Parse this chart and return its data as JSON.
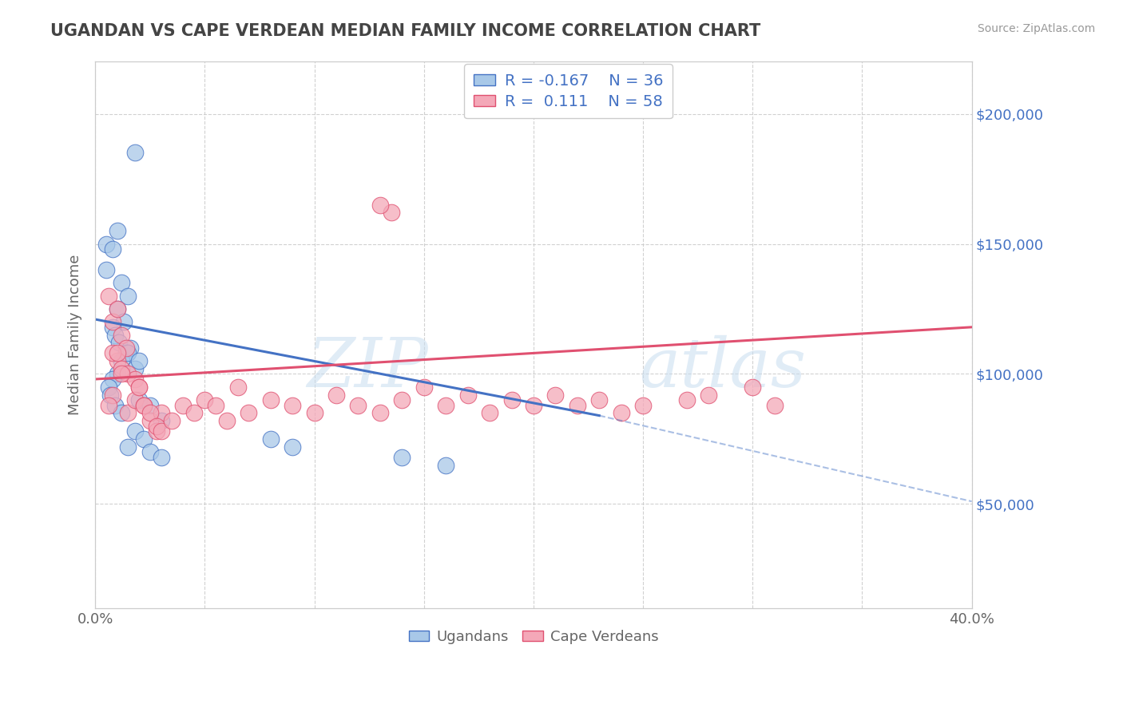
{
  "title": "UGANDAN VS CAPE VERDEAN MEDIAN FAMILY INCOME CORRELATION CHART",
  "source_text": "Source: ZipAtlas.com",
  "ylabel": "Median Family Income",
  "watermark_line1": "ZIP",
  "watermark_line2": "atlas",
  "xlim": [
    0.0,
    0.4
  ],
  "ylim": [
    10000,
    220000
  ],
  "yticks": [
    50000,
    100000,
    150000,
    200000
  ],
  "xticks": [
    0.0,
    0.05,
    0.1,
    0.15,
    0.2,
    0.25,
    0.3,
    0.35,
    0.4
  ],
  "ugandan_color": "#a8c8e8",
  "cape_verdean_color": "#f4a8b8",
  "ugandan_line_color": "#4472c4",
  "cape_verdean_line_color": "#e05070",
  "ugandan_scatter": {
    "x": [
      0.018,
      0.005,
      0.005,
      0.008,
      0.01,
      0.012,
      0.015,
      0.01,
      0.013,
      0.008,
      0.009,
      0.011,
      0.014,
      0.016,
      0.012,
      0.015,
      0.018,
      0.02,
      0.01,
      0.008,
      0.006,
      0.007,
      0.009,
      0.012,
      0.02,
      0.025,
      0.03,
      0.018,
      0.022,
      0.08,
      0.09,
      0.14,
      0.16,
      0.025,
      0.03,
      0.015
    ],
    "y": [
      185000,
      150000,
      140000,
      148000,
      155000,
      135000,
      130000,
      125000,
      120000,
      118000,
      115000,
      112000,
      108000,
      110000,
      105000,
      108000,
      102000,
      105000,
      100000,
      98000,
      95000,
      92000,
      88000,
      85000,
      90000,
      88000,
      82000,
      78000,
      75000,
      75000,
      72000,
      68000,
      65000,
      70000,
      68000,
      72000
    ]
  },
  "cape_verdean_scatter": {
    "x": [
      0.006,
      0.008,
      0.01,
      0.012,
      0.014,
      0.01,
      0.008,
      0.012,
      0.015,
      0.018,
      0.02,
      0.01,
      0.012,
      0.008,
      0.006,
      0.015,
      0.018,
      0.022,
      0.025,
      0.028,
      0.03,
      0.02,
      0.022,
      0.025,
      0.028,
      0.03,
      0.035,
      0.04,
      0.045,
      0.05,
      0.055,
      0.06,
      0.065,
      0.07,
      0.08,
      0.09,
      0.1,
      0.11,
      0.12,
      0.13,
      0.135,
      0.14,
      0.15,
      0.16,
      0.17,
      0.18,
      0.19,
      0.2,
      0.21,
      0.22,
      0.23,
      0.24,
      0.25,
      0.27,
      0.13,
      0.28,
      0.3,
      0.31
    ],
    "y": [
      130000,
      120000,
      125000,
      115000,
      110000,
      105000,
      108000,
      102000,
      100000,
      98000,
      95000,
      108000,
      100000,
      92000,
      88000,
      85000,
      90000,
      88000,
      82000,
      78000,
      85000,
      95000,
      88000,
      85000,
      80000,
      78000,
      82000,
      88000,
      85000,
      90000,
      88000,
      82000,
      95000,
      85000,
      90000,
      88000,
      85000,
      92000,
      88000,
      85000,
      162000,
      90000,
      95000,
      88000,
      92000,
      85000,
      90000,
      88000,
      92000,
      88000,
      90000,
      85000,
      88000,
      90000,
      165000,
      92000,
      95000,
      88000
    ]
  },
  "ugandan_line": {
    "x0": 0.0,
    "y0": 121000,
    "x1": 0.23,
    "y1": 84000
  },
  "ugandan_line_dashed": {
    "x0": 0.23,
    "y0": 84000,
    "x1": 0.4,
    "y1": 51000
  },
  "cape_verdean_line": {
    "x0": 0.0,
    "y0": 98000,
    "x1": 0.4,
    "y1": 118000
  },
  "background_color": "#ffffff",
  "grid_color": "#cccccc",
  "title_color": "#444444",
  "axis_label_color": "#666666",
  "right_ytick_color": "#4472c4",
  "source_color": "#999999"
}
